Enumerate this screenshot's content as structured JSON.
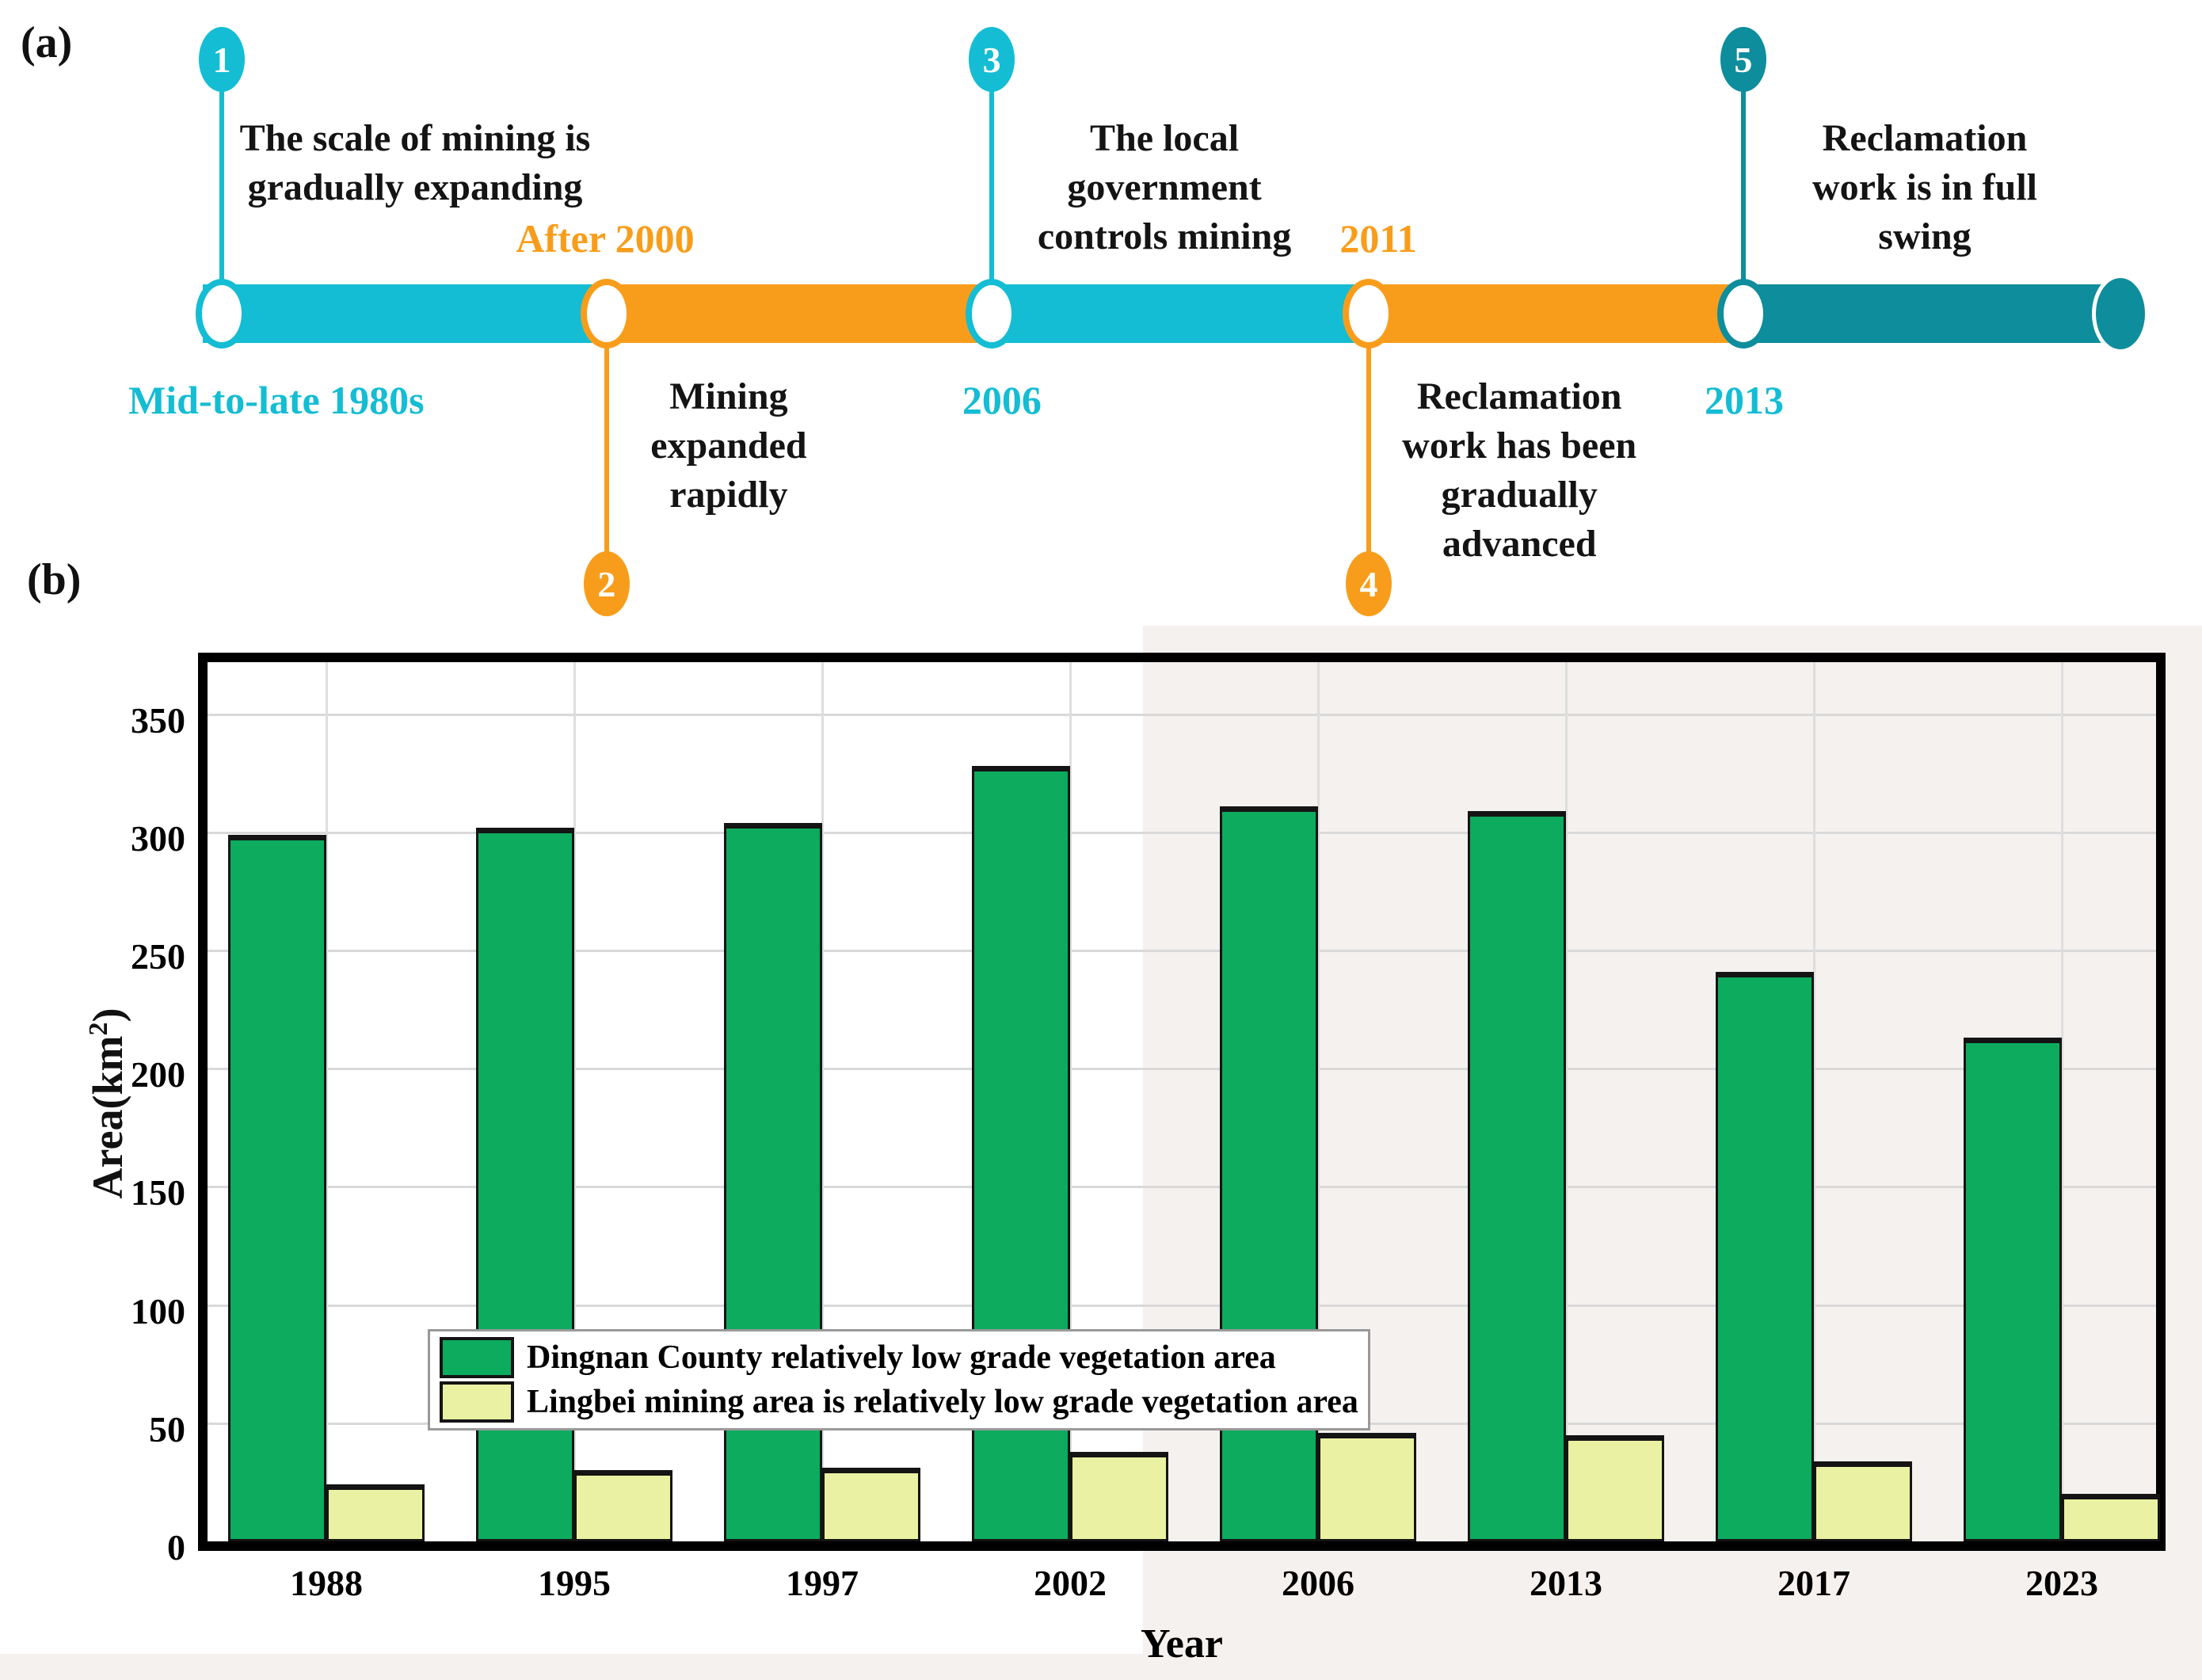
{
  "panels": {
    "a_label": "(a)",
    "b_label": "(b)"
  },
  "timeline": {
    "colors": {
      "cyan": "#14bdd3",
      "orange": "#f89d1b",
      "teal": "#0e8d9c"
    },
    "text_color": "#141414",
    "bar": {
      "start_pct": 9.21,
      "end_pct": 95.5,
      "cap_center_pct": 96.3
    },
    "segments": [
      {
        "color": "cyan",
        "from_pct": 9.21,
        "to_pct": 27.55
      },
      {
        "color": "orange",
        "from_pct": 27.55,
        "to_pct": 45.04
      },
      {
        "color": "cyan",
        "from_pct": 45.04,
        "to_pct": 62.16
      },
      {
        "color": "orange",
        "from_pct": 62.16,
        "to_pct": 79.17
      },
      {
        "color": "teal",
        "from_pct": 79.17,
        "to_pct": 95.5
      }
    ],
    "events": [
      {
        "num": "1",
        "x_pct": 10.07,
        "badge": "top",
        "color": "cyan",
        "text": "The scale of mining is\ngradually expanding",
        "text_pos": "top",
        "text_center_pct": 18.85,
        "year": "Mid-to-late 1980s",
        "year_pos": "bottom",
        "year_color": "cyan",
        "year_center_pct": 12.55
      },
      {
        "num": "2",
        "x_pct": 27.55,
        "badge": "bottom",
        "color": "orange",
        "text": "Mining\nexpanded\nrapidly",
        "text_pos": "bottom",
        "text_center_pct": 33.09,
        "year": "After 2000",
        "year_pos": "top",
        "year_color": "orange",
        "year_center_pct": 27.48
      },
      {
        "num": "3",
        "x_pct": 45.04,
        "badge": "top",
        "color": "cyan",
        "text": "The local\ngovernment\ncontrols mining",
        "text_pos": "top",
        "text_center_pct": 52.88,
        "year": "2006",
        "year_pos": "bottom",
        "year_color": "cyan",
        "year_center_pct": 45.5
      },
      {
        "num": "4",
        "x_pct": 62.16,
        "badge": "bottom",
        "color": "orange",
        "text": "Reclamation\nwork has been\ngradually\nadvanced",
        "text_pos": "bottom",
        "text_center_pct": 69.0,
        "year": "2011",
        "year_pos": "top",
        "year_color": "orange",
        "year_center_pct": 62.59
      },
      {
        "num": "5",
        "x_pct": 79.17,
        "badge": "top",
        "color": "teal",
        "text": "Reclamation\nwork is in full\nswing",
        "text_pos": "top",
        "text_center_pct": 87.41,
        "year": "2013",
        "year_pos": "bottom",
        "year_color": "cyan",
        "year_center_pct": 79.21
      }
    ]
  },
  "chart_data": {
    "type": "bar",
    "title": "",
    "categories": [
      "1988",
      "1995",
      "1997",
      "2002",
      "2006",
      "2013",
      "2017",
      "2023"
    ],
    "series": [
      {
        "name": "Dingnan County relatively low grade vegetation area",
        "color": "#0cab5e",
        "values": [
          299,
          302,
          304,
          328,
          311,
          309,
          241,
          213
        ]
      },
      {
        "name": "Lingbei mining area is relatively low grade vegetation area",
        "color": "#eaf1a3",
        "values": [
          24,
          30,
          31,
          38,
          46,
          45,
          34,
          20
        ]
      }
    ],
    "xlabel": "Year",
    "ylabel_prefix": "Area(km",
    "ylabel_sup": "2",
    "ylabel_suffix": ")",
    "ylim": [
      0,
      372
    ],
    "yticks": [
      0,
      50,
      100,
      150,
      200,
      250,
      300,
      350
    ],
    "grid": true,
    "legend_position": "upper-left",
    "gridline_color": "#d9d9d9",
    "bar_outline_color": "#141414"
  }
}
